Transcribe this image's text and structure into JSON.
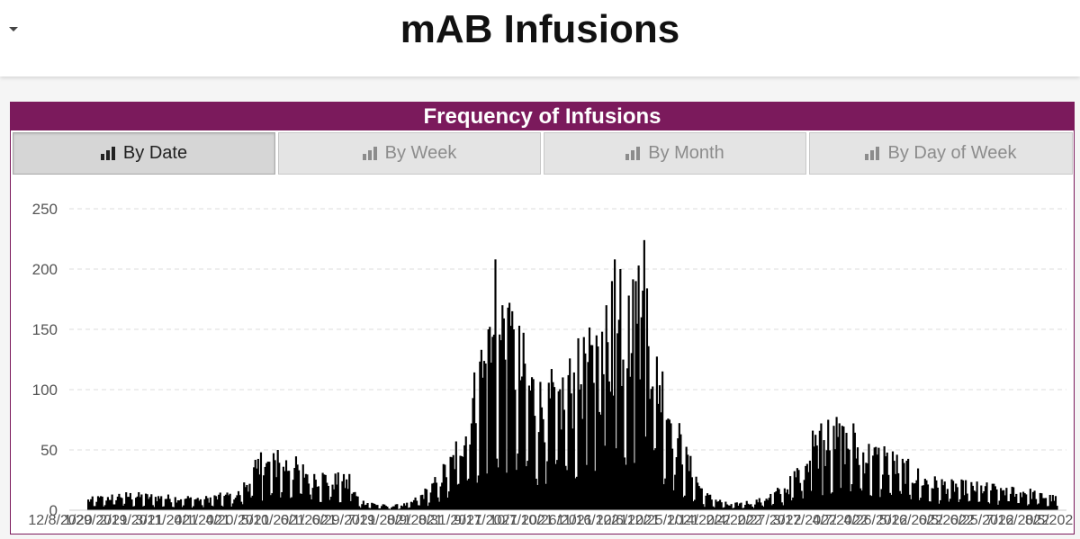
{
  "header": {
    "title": "mAB Infusions"
  },
  "panel": {
    "title": "Frequency of Infusions",
    "tabs": [
      {
        "label": "By Date",
        "active": true
      },
      {
        "label": "By Week",
        "active": false
      },
      {
        "label": "By Month",
        "active": false
      },
      {
        "label": "By Day of Week",
        "active": false
      }
    ]
  },
  "colors": {
    "panel_header": "#7b1a5c",
    "bars": "#000000"
  },
  "chart_data": {
    "type": "bar",
    "title": "",
    "xlabel": "",
    "ylabel": "",
    "ylim": [
      0,
      250
    ],
    "yticks": [
      0,
      50,
      100,
      150,
      200,
      250
    ],
    "grid": true,
    "x_tick_labels": [
      "12/8/2020",
      "1/29/2021",
      "2/19/2021",
      "3/11/2021",
      "4/1/2021",
      "4/20/2021",
      "5/10/2021",
      "6/1/2021",
      "6/29/2021",
      "7/19/2021",
      "8/9/2021",
      "8/31/2021",
      "9/17/2021",
      "10/7/2021",
      "10/26/2021",
      "11/16/2021",
      "12/6/2021",
      "12/25/2021",
      "1/14/2022",
      "2/4/2022",
      "2/27/2022",
      "3/17/2022",
      "4/7/2022",
      "4/26/2022",
      "5/16/2022",
      "6/5/2022",
      "6/25/2022",
      "7/16/2022",
      "8/5/2022"
    ],
    "anchors": [
      [
        "2020-12-08",
        8
      ],
      [
        "2021-01-01",
        12
      ],
      [
        "2021-02-01",
        10
      ],
      [
        "2021-03-01",
        9
      ],
      [
        "2021-03-25",
        13
      ],
      [
        "2021-04-08",
        34
      ],
      [
        "2021-04-25",
        38
      ],
      [
        "2021-05-20",
        27
      ],
      [
        "2021-06-10",
        22
      ],
      [
        "2021-06-20",
        7
      ],
      [
        "2021-07-10",
        3
      ],
      [
        "2021-07-25",
        5
      ],
      [
        "2021-08-10",
        18
      ],
      [
        "2021-08-25",
        40
      ],
      [
        "2021-09-05",
        75
      ],
      [
        "2021-09-15",
        110
      ],
      [
        "2021-09-25",
        140
      ],
      [
        "2021-10-10",
        120
      ],
      [
        "2021-10-25",
        85
      ],
      [
        "2021-11-10",
        90
      ],
      [
        "2021-11-25",
        110
      ],
      [
        "2021-12-10",
        120
      ],
      [
        "2021-12-25",
        150
      ],
      [
        "2022-01-08",
        160
      ],
      [
        "2022-01-20",
        100
      ],
      [
        "2022-02-05",
        45
      ],
      [
        "2022-02-20",
        12
      ],
      [
        "2022-03-10",
        4
      ],
      [
        "2022-04-01",
        8
      ],
      [
        "2022-04-20",
        18
      ],
      [
        "2022-05-10",
        52
      ],
      [
        "2022-05-25",
        58
      ],
      [
        "2022-06-15",
        45
      ],
      [
        "2022-07-05",
        38
      ],
      [
        "2022-07-30",
        22
      ],
      [
        "2022-09-01",
        18
      ],
      [
        "2022-10-01",
        16
      ],
      [
        "2022-10-29",
        9
      ]
    ],
    "peaks": [
      [
        "2021-04-10",
        48
      ],
      [
        "2021-04-22",
        50
      ],
      [
        "2021-05-10",
        38
      ],
      [
        "2021-06-12",
        30
      ],
      [
        "2021-09-14",
        133
      ],
      [
        "2021-09-19",
        150
      ],
      [
        "2021-09-24",
        208
      ],
      [
        "2021-09-29",
        170
      ],
      [
        "2021-10-03",
        168
      ],
      [
        "2021-10-06",
        165
      ],
      [
        "2021-11-15",
        112
      ],
      [
        "2021-11-27",
        130
      ],
      [
        "2021-12-05",
        145
      ],
      [
        "2021-12-12",
        170
      ],
      [
        "2021-12-16",
        190
      ],
      [
        "2021-12-18",
        208
      ],
      [
        "2021-12-22",
        200
      ],
      [
        "2021-12-28",
        178
      ],
      [
        "2022-01-02",
        190
      ],
      [
        "2022-01-06",
        160
      ],
      [
        "2022-01-08",
        224
      ],
      [
        "2022-01-10",
        184
      ],
      [
        "2022-05-08",
        66
      ],
      [
        "2022-05-14",
        72
      ],
      [
        "2022-05-19",
        75
      ],
      [
        "2022-05-23",
        70
      ],
      [
        "2022-05-29",
        70
      ],
      [
        "2022-06-06",
        72
      ],
      [
        "2022-06-28",
        53
      ]
    ]
  }
}
